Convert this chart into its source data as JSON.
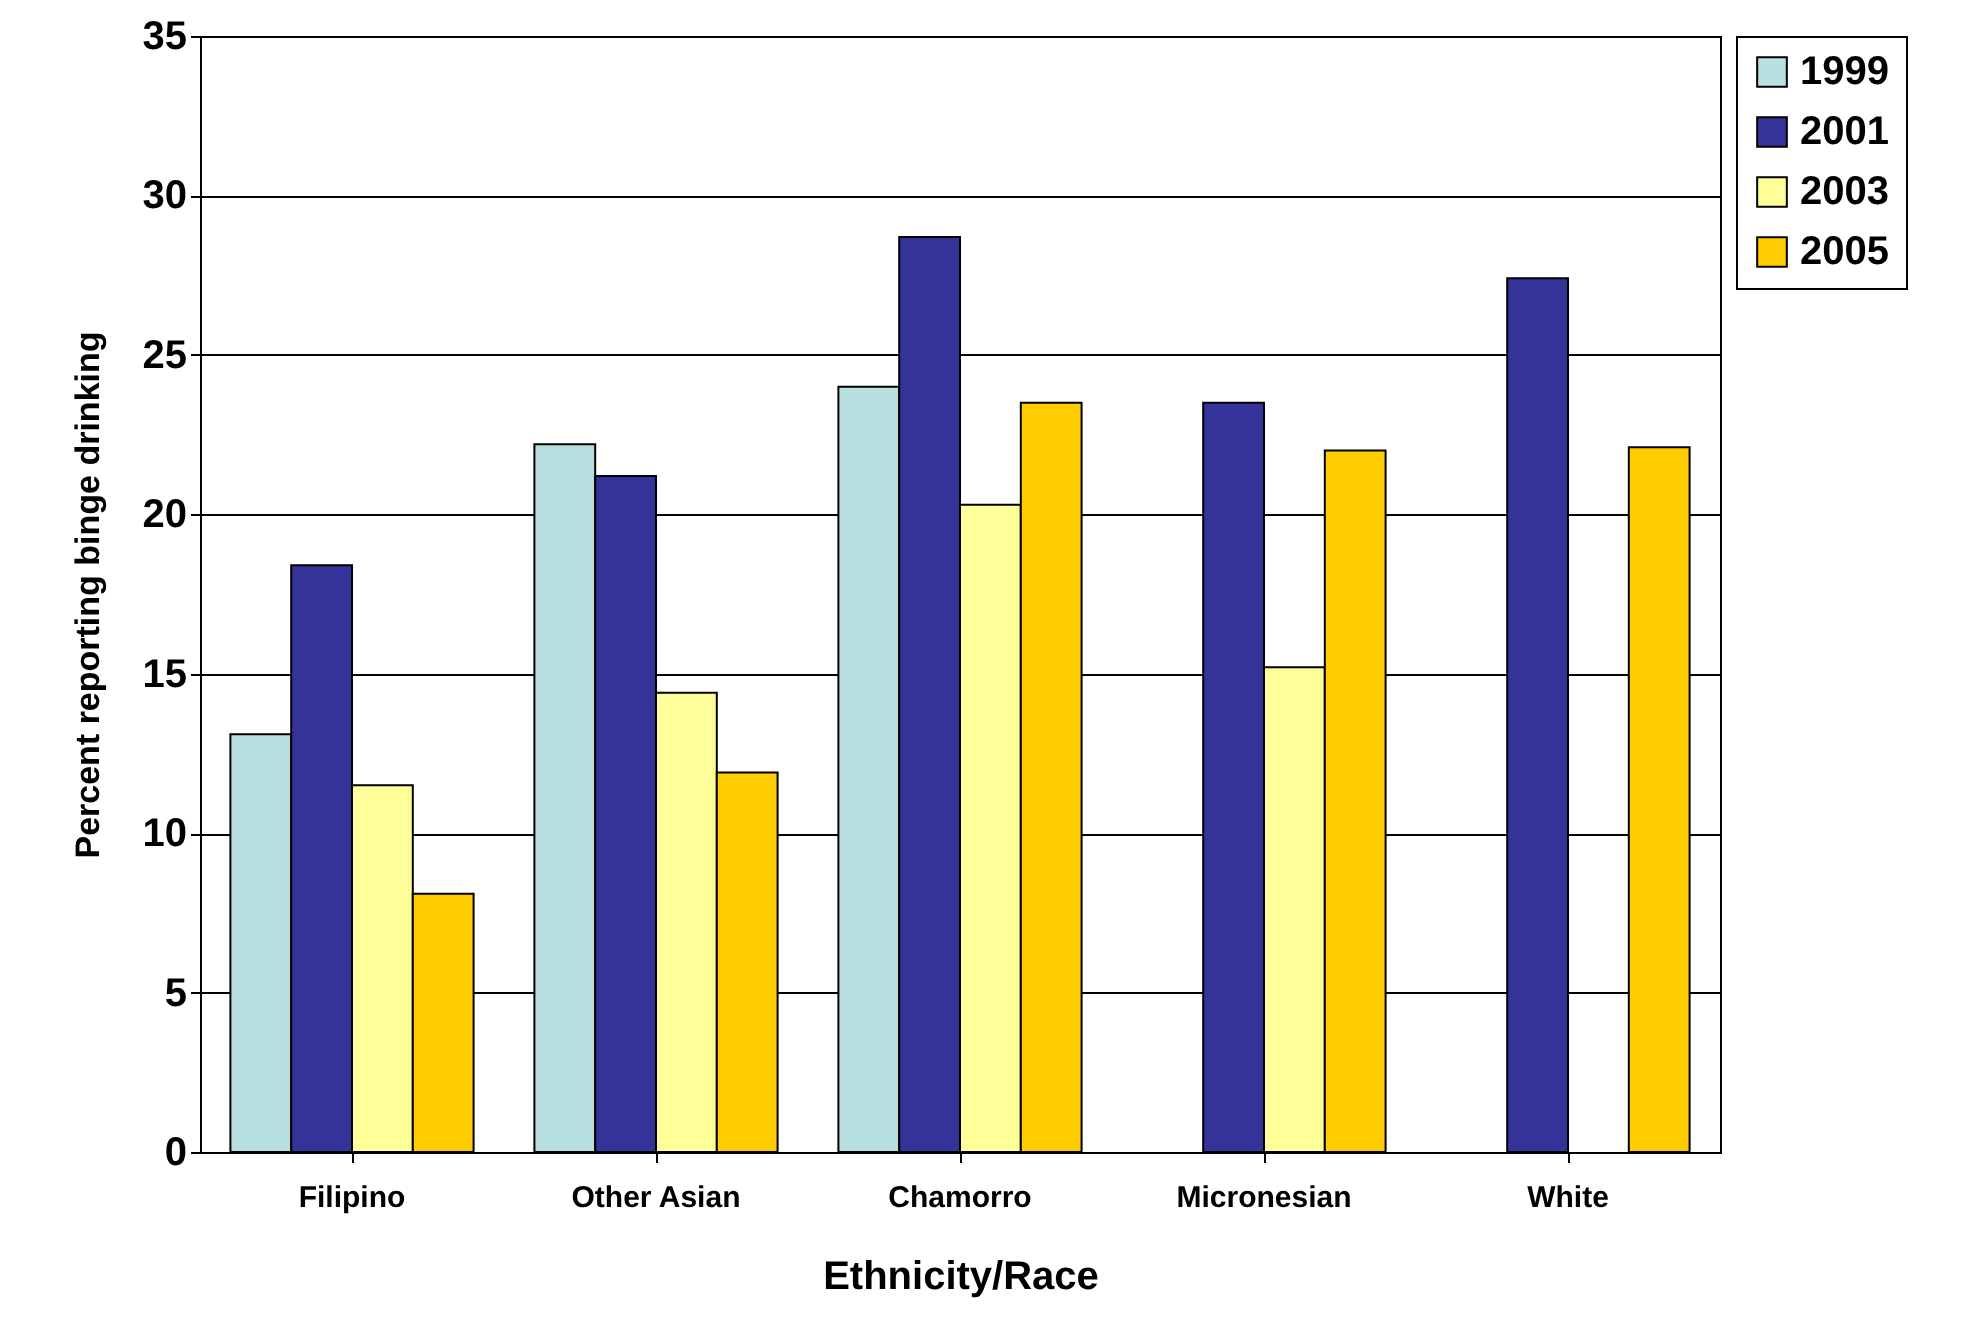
{
  "chart_data": {
    "type": "bar",
    "xlabel": "Ethnicity/Race",
    "ylabel": "Percent reporting binge drinking",
    "categories": [
      "Filipino",
      "Other Asian",
      "Chamorro",
      "Micronesian",
      "White"
    ],
    "series": [
      {
        "name": "1999",
        "color": "#b8e0e0",
        "values": [
          13.1,
          22.2,
          24.0,
          null,
          null
        ]
      },
      {
        "name": "2001",
        "color": "#333399",
        "values": [
          18.4,
          21.2,
          28.7,
          23.5,
          27.4
        ]
      },
      {
        "name": "2003",
        "color": "#ffff99",
        "values": [
          11.5,
          14.4,
          20.3,
          15.2,
          null
        ]
      },
      {
        "name": "2005",
        "color": "#ffcc00",
        "values": [
          8.1,
          11.9,
          23.5,
          22.0,
          22.1
        ]
      }
    ],
    "ylim": [
      0,
      35
    ],
    "yticks": [
      0,
      5,
      10,
      15,
      20,
      25,
      30,
      35
    ],
    "grid": "y",
    "legend": "right"
  }
}
